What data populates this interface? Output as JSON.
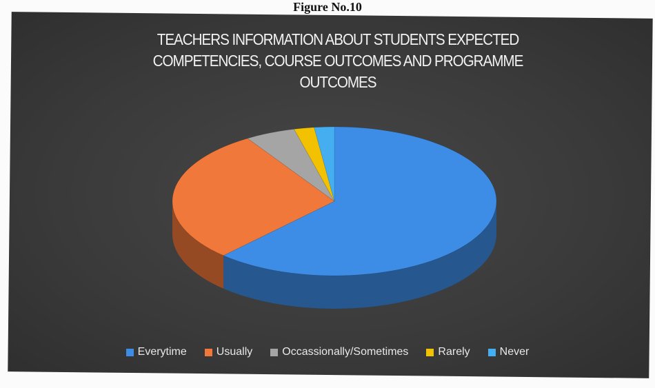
{
  "caption": "Figure No.10",
  "chart_data": {
    "type": "pie",
    "title": "TEACHERS INFORMATION ABOUT STUDENTS EXPECTED COMPETENCIES, COURSE OUTCOMES AND PROGRAMME OUTCOMES",
    "categories": [
      "Everytime",
      "Usually",
      "Occassionally/Sometimes",
      "Rarely",
      "Never"
    ],
    "values": [
      62,
      29,
      5,
      2,
      2
    ],
    "colors": [
      "#3d8de6",
      "#f0783a",
      "#a5a5a5",
      "#f2c200",
      "#44aef0"
    ],
    "legend": "bottom"
  }
}
